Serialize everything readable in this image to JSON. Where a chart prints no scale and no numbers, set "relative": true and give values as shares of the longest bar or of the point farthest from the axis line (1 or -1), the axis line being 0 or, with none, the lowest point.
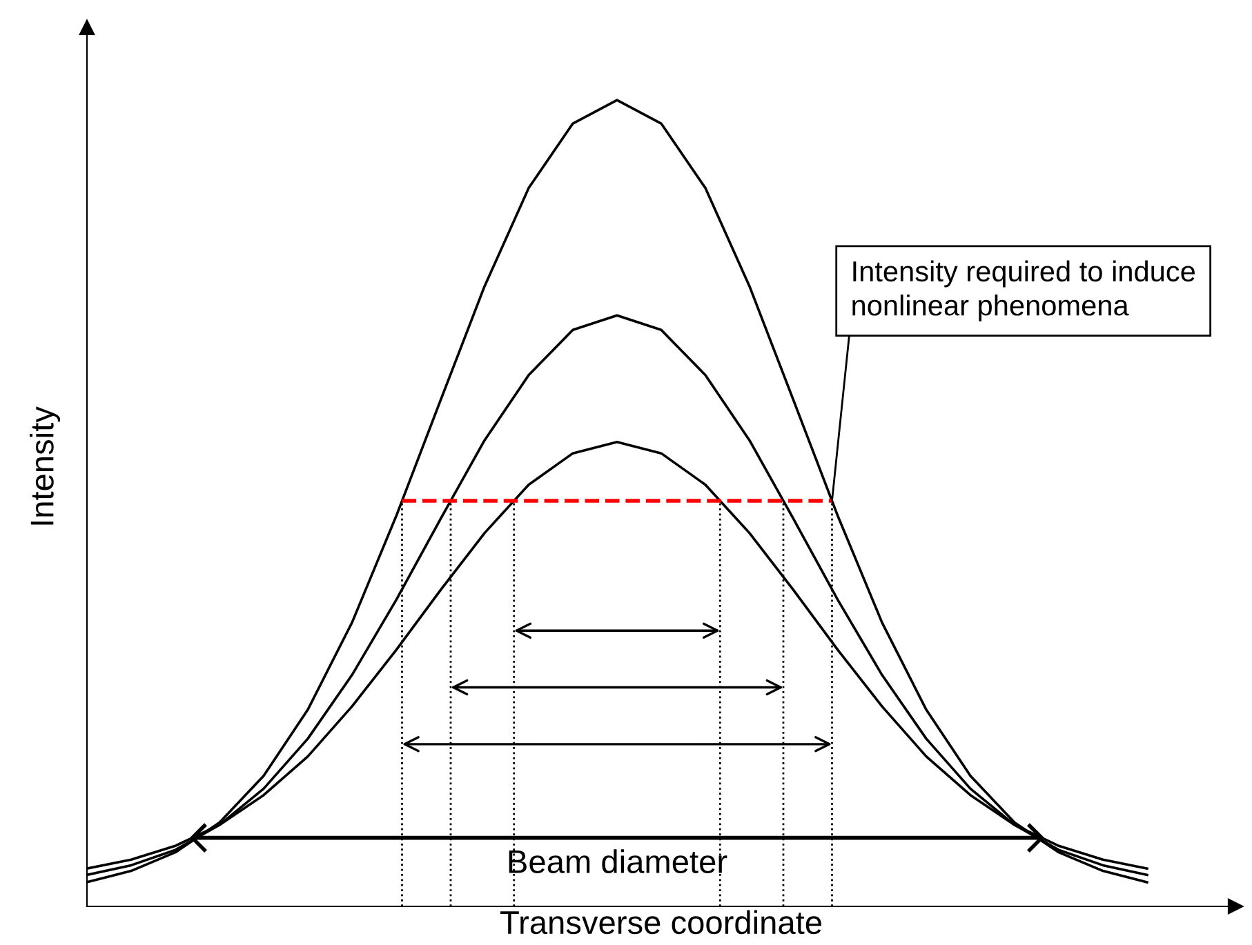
{
  "chart_data": {
    "type": "line",
    "relative": true,
    "xlabel": "Transverse coordinate",
    "ylabel": "Intensity",
    "categories": [
      null,
      null,
      null,
      null,
      null,
      null,
      null,
      null,
      null,
      null,
      null,
      null,
      null,
      null,
      null,
      null,
      null,
      null,
      null,
      null,
      null,
      null,
      null,
      null,
      null
    ],
    "series": [
      {
        "color": "#000000",
        "values": [
          0.03,
          0.044,
          0.067,
          0.104,
          0.162,
          0.244,
          0.352,
          0.484,
          0.627,
          0.769,
          0.891,
          0.971,
          1.0,
          0.971,
          0.891,
          0.769,
          0.627,
          0.484,
          0.352,
          0.244,
          0.162,
          0.104,
          0.067,
          0.044,
          0.03
        ]
      },
      {
        "color": "#000000",
        "values": [
          0.039,
          0.051,
          0.07,
          0.101,
          0.146,
          0.208,
          0.287,
          0.38,
          0.48,
          0.578,
          0.659,
          0.715,
          0.733,
          0.715,
          0.659,
          0.578,
          0.48,
          0.38,
          0.287,
          0.208,
          0.146,
          0.101,
          0.07,
          0.051,
          0.039
        ]
      },
      {
        "color": "#000000",
        "values": [
          0.047,
          0.058,
          0.075,
          0.101,
          0.138,
          0.186,
          0.248,
          0.318,
          0.392,
          0.463,
          0.523,
          0.562,
          0.576,
          0.562,
          0.523,
          0.463,
          0.392,
          0.318,
          0.248,
          0.186,
          0.138,
          0.101,
          0.075,
          0.058,
          0.047
        ]
      }
    ],
    "ref_lines": [
      {
        "axis": "y",
        "value": 0.503,
        "color": "#ff0000",
        "line_style": "dashed",
        "label": "Intensity required to induce nonlinear phenomena"
      },
      {
        "axis": "y",
        "value": 0.085,
        "color": "#000000",
        "line_style": "solid",
        "label": "Beam diameter"
      }
    ],
    "line_style": "solid",
    "marker": "none",
    "grid": false,
    "tick_labels": false
  }
}
